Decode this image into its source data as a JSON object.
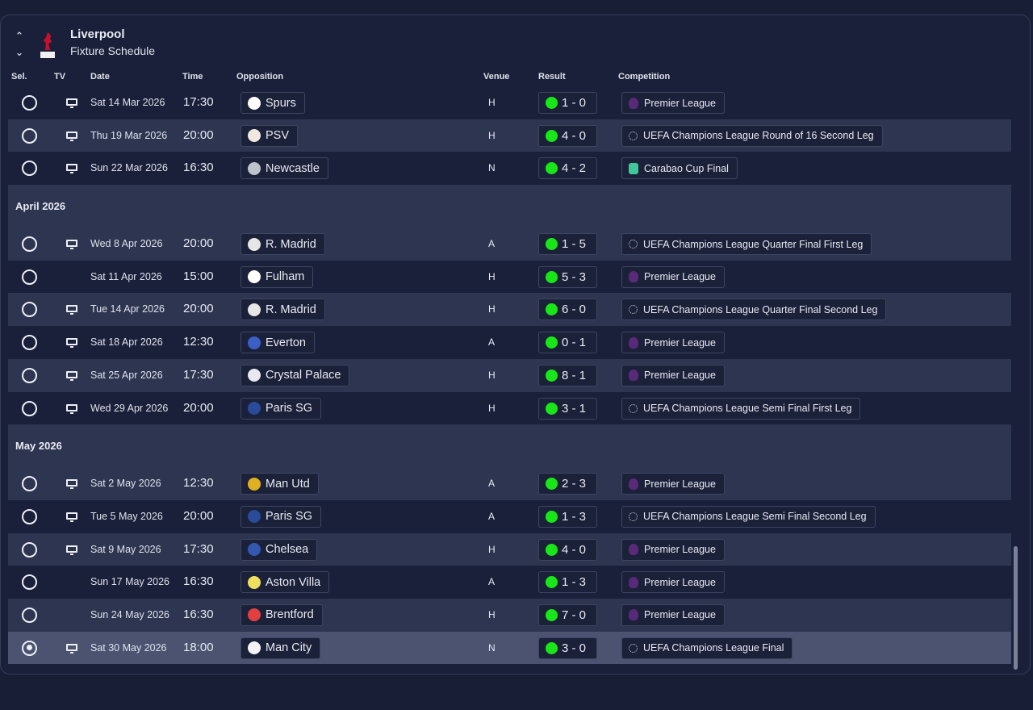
{
  "header": {
    "club": "Liverpool",
    "subtitle": "Fixture Schedule"
  },
  "columns": {
    "sel": "Sel.",
    "tv": "TV",
    "date": "Date",
    "time": "Time",
    "opposition": "Opposition",
    "venue": "Venue",
    "result": "Result",
    "competition": "Competition"
  },
  "colors": {
    "win": "#19e619",
    "background": "#1a2039",
    "alt_row": "#2e3550",
    "selected_row": "#4b5370"
  },
  "months": [
    {
      "label": "",
      "fixtures": [
        {
          "tv": true,
          "date": "Sat 14 Mar 2026",
          "time": "17:30",
          "opp": "Spurs",
          "badge": "#ffffff",
          "venue": "H",
          "result": "1 - 0",
          "comp": "Premier League",
          "cicon": "premier-league"
        },
        {
          "tv": true,
          "date": "Thu 19 Mar 2026",
          "time": "20:00",
          "opp": "PSV",
          "badge": "#f0e8e0",
          "venue": "H",
          "result": "4 - 0",
          "comp": "UEFA Champions League Round of 16  Second Leg",
          "cicon": "champions-league"
        },
        {
          "tv": true,
          "date": "Sun 22 Mar 2026",
          "time": "16:30",
          "opp": "Newcastle",
          "badge": "#bcc3cc",
          "venue": "N",
          "result": "4 - 2",
          "comp": "Carabao Cup Final",
          "cicon": "carabao-cup"
        }
      ]
    },
    {
      "label": "April 2026",
      "fixtures": [
        {
          "tv": true,
          "date": "Wed 8 Apr 2026",
          "time": "20:00",
          "opp": "R. Madrid",
          "badge": "#e6e6e6",
          "venue": "A",
          "result": "1 - 5",
          "comp": "UEFA Champions League Quarter Final First Leg",
          "cicon": "champions-league"
        },
        {
          "tv": false,
          "date": "Sat 11 Apr 2026",
          "time": "15:00",
          "opp": "Fulham",
          "badge": "#ffffff",
          "venue": "H",
          "result": "5 - 3",
          "comp": "Premier League",
          "cicon": "premier-league"
        },
        {
          "tv": true,
          "date": "Tue 14 Apr 2026",
          "time": "20:00",
          "opp": "R. Madrid",
          "badge": "#e6e6e6",
          "venue": "H",
          "result": "6 - 0",
          "comp": "UEFA Champions League Quarter Final Second Leg",
          "cicon": "champions-league"
        },
        {
          "tv": true,
          "date": "Sat 18 Apr 2026",
          "time": "12:30",
          "opp": "Everton",
          "badge": "#3b5fc4",
          "venue": "A",
          "result": "0 - 1",
          "comp": "Premier League",
          "cicon": "premier-league"
        },
        {
          "tv": true,
          "date": "Sat 25 Apr 2026",
          "time": "17:30",
          "opp": "Crystal Palace",
          "badge": "#e8e8f0",
          "venue": "H",
          "result": "8 - 1",
          "comp": "Premier League",
          "cicon": "premier-league"
        },
        {
          "tv": true,
          "date": "Wed 29 Apr 2026",
          "time": "20:00",
          "opp": "Paris SG",
          "badge": "#2a4a9a",
          "venue": "H",
          "result": "3 - 1",
          "comp": "UEFA Champions League Semi Final First Leg",
          "cicon": "champions-league"
        }
      ]
    },
    {
      "label": "May 2026",
      "fixtures": [
        {
          "tv": true,
          "date": "Sat 2 May 2026",
          "time": "12:30",
          "opp": "Man Utd",
          "badge": "#e0b020",
          "venue": "A",
          "result": "2 - 3",
          "comp": "Premier League",
          "cicon": "premier-league"
        },
        {
          "tv": true,
          "date": "Tue 5 May 2026",
          "time": "20:00",
          "opp": "Paris SG",
          "badge": "#2a4a9a",
          "venue": "A",
          "result": "1 - 3",
          "comp": "UEFA Champions League Semi Final Second Leg",
          "cicon": "champions-league"
        },
        {
          "tv": true,
          "date": "Sat 9 May 2026",
          "time": "17:30",
          "opp": "Chelsea",
          "badge": "#3458b0",
          "venue": "H",
          "result": "4 - 0",
          "comp": "Premier League",
          "cicon": "premier-league"
        },
        {
          "tv": false,
          "date": "Sun 17 May 2026",
          "time": "16:30",
          "opp": "Aston Villa",
          "badge": "#f0e060",
          "venue": "A",
          "result": "1 - 3",
          "comp": "Premier League",
          "cicon": "premier-league"
        },
        {
          "tv": false,
          "date": "Sun 24 May 2026",
          "time": "16:30",
          "opp": "Brentford",
          "badge": "#e04040",
          "venue": "H",
          "result": "7 - 0",
          "comp": "Premier League",
          "cicon": "premier-league"
        },
        {
          "tv": true,
          "date": "Sat 30 May 2026",
          "time": "18:00",
          "opp": "Man City",
          "badge": "#f4f4f8",
          "venue": "N",
          "result": "3 - 0",
          "comp": "UEFA Champions League Final",
          "cicon": "champions-league",
          "selected": true
        }
      ]
    }
  ]
}
